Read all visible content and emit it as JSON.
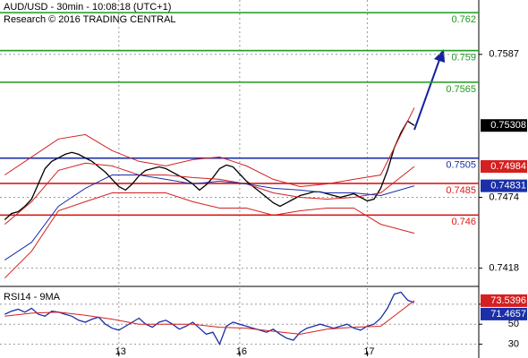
{
  "chart_data": [
    {
      "type": "line",
      "title": "AUD/USD - 30min - 10:08:18 (UTC+1)",
      "subtitle": "Research © 2016 TRADING CENTRAL",
      "x": [
        0,
        1,
        2,
        3,
        4,
        5,
        6,
        7,
        8,
        9,
        10,
        11,
        12,
        13,
        14,
        15,
        16,
        17,
        18,
        19,
        20,
        21,
        22,
        23,
        24,
        25,
        26,
        27,
        28,
        29,
        30,
        31,
        32,
        33,
        34,
        35,
        36,
        37,
        38,
        39,
        40,
        41,
        42,
        43,
        44,
        45,
        46,
        47,
        48,
        49,
        50,
        51,
        52,
        53,
        54,
        55,
        56,
        57,
        58,
        59,
        60,
        61
      ],
      "xlim": [
        -0.7,
        70.6
      ],
      "xticks": [
        {
          "value": 17,
          "label": "13"
        },
        {
          "value": 35,
          "label": "16"
        },
        {
          "value": 54,
          "label": "17"
        }
      ],
      "ylim": [
        0.7405,
        0.763
      ],
      "yticks": [
        0.7587,
        0.7474,
        0.7418
      ],
      "grid": true,
      "levels": [
        {
          "value": 0.762,
          "color": "#1f9a1f"
        },
        {
          "value": 0.759,
          "color": "#1f9a1f"
        },
        {
          "value": 0.7565,
          "color": "#1f9a1f"
        },
        {
          "value": 0.7505,
          "color": "#1a2fa8"
        },
        {
          "value": 0.7485,
          "color": "#d81b1b"
        },
        {
          "value": 0.746,
          "color": "#d81b1b"
        }
      ],
      "series": [
        {
          "color": "#000000",
          "last_label": true,
          "values": [
            0.74563,
            0.74612,
            0.74627,
            0.74669,
            0.74726,
            0.74846,
            0.74967,
            0.75024,
            0.75052,
            0.7508,
            0.75095,
            0.7508,
            0.75052,
            0.75024,
            0.74981,
            0.74939,
            0.74882,
            0.74825,
            0.74797,
            0.74846,
            0.7491,
            0.74953,
            0.74967,
            0.74981,
            0.74967,
            0.74939,
            0.7491,
            0.74882,
            0.74846,
            0.74797,
            0.74839,
            0.74896,
            0.74967,
            0.74995,
            0.74981,
            0.74924,
            0.74868,
            0.74825,
            0.74783,
            0.7474,
            0.74697,
            0.74669,
            0.74697,
            0.74726,
            0.74754,
            0.74768,
            0.74783,
            0.74783,
            0.74768,
            0.74754,
            0.7474,
            0.74754,
            0.74768,
            0.7474,
            0.74712,
            0.74726,
            0.74811,
            0.74953,
            0.7513,
            0.75251,
            0.75343,
            0.75308
          ]
        },
        {
          "color": "#d42020",
          "last_label": false,
          "x": [
            0,
            4,
            8,
            12,
            16,
            20,
            24,
            28,
            32,
            36,
            40,
            44,
            48,
            52,
            56,
            61
          ],
          "values": [
            0.74917,
            0.75059,
            0.75201,
            0.75236,
            0.75109,
            0.75024,
            0.74988,
            0.75038,
            0.75059,
            0.74988,
            0.74882,
            0.74825,
            0.74846,
            0.74882,
            0.74917,
            0.75449
          ]
        },
        {
          "color": "#d42020",
          "last_label": false,
          "x": [
            0,
            4,
            8,
            12,
            16,
            20,
            24,
            28,
            32,
            36,
            40,
            44,
            48,
            52,
            56,
            61
          ],
          "values": [
            0.74102,
            0.74314,
            0.74634,
            0.74705,
            0.74775,
            0.74775,
            0.74775,
            0.74705,
            0.74655,
            0.74655,
            0.74598,
            0.74634,
            0.74655,
            0.74655,
            0.74527,
            0.74456
          ]
        },
        {
          "color": "#d42020",
          "last_label": true,
          "x": [
            0,
            4,
            8,
            12,
            16,
            20,
            24,
            28,
            32,
            36,
            40,
            44,
            48,
            52,
            56,
            61
          ],
          "values": [
            0.74527,
            0.74705,
            0.74953,
            0.7501,
            0.74988,
            0.74917,
            0.74917,
            0.74896,
            0.74882,
            0.74846,
            0.74775,
            0.7474,
            0.74726,
            0.7474,
            0.74775,
            0.74984
          ]
        },
        {
          "color": "#1a2fa8",
          "last_label": true,
          "x": [
            0,
            4,
            8,
            12,
            16,
            20,
            24,
            28,
            32,
            36,
            40,
            44,
            48,
            52,
            56,
            61
          ],
          "values": [
            0.74244,
            0.74385,
            0.74669,
            0.74811,
            0.74917,
            0.74917,
            0.74882,
            0.74846,
            0.74868,
            0.74846,
            0.74811,
            0.74797,
            0.74775,
            0.74775,
            0.74754,
            0.74831
          ]
        }
      ]
    },
    {
      "type": "line",
      "title": "RSI14 - 9MA",
      "x": [
        0,
        1,
        2,
        3,
        4,
        5,
        6,
        7,
        8,
        9,
        10,
        11,
        12,
        13,
        14,
        15,
        16,
        17,
        18,
        19,
        20,
        21,
        22,
        23,
        24,
        25,
        26,
        27,
        28,
        29,
        30,
        31,
        32,
        33,
        34,
        35,
        36,
        37,
        38,
        39,
        40,
        41,
        42,
        43,
        44,
        45,
        46,
        47,
        48,
        49,
        50,
        51,
        52,
        53,
        54,
        55,
        56,
        57,
        58,
        59,
        60,
        61
      ],
      "ylim": [
        18,
        86
      ],
      "yticks": [
        70,
        50,
        30
      ],
      "grid": true,
      "series": [
        {
          "color": "#1a2fa8",
          "last_label": true,
          "values": [
            60,
            63,
            65,
            62,
            66,
            60,
            58,
            63,
            62,
            60,
            58,
            54,
            52,
            55,
            57,
            50,
            46,
            44,
            48,
            52,
            56,
            50,
            47,
            52,
            54,
            50,
            45,
            48,
            52,
            46,
            40,
            42,
            30,
            48,
            52,
            50,
            48,
            46,
            44,
            42,
            45,
            40,
            36,
            34,
            42,
            46,
            48,
            50,
            48,
            46,
            48,
            50,
            46,
            44,
            48,
            50,
            56,
            66,
            80,
            82,
            74,
            71.4657
          ]
        },
        {
          "color": "#d42020",
          "last_label": true,
          "x": [
            0,
            4,
            8,
            12,
            16,
            20,
            24,
            28,
            32,
            36,
            40,
            44,
            48,
            52,
            56,
            61
          ],
          "values": [
            58,
            61,
            62,
            59,
            55,
            50,
            50,
            50,
            47,
            46,
            43,
            40,
            45,
            47,
            48,
            73.5396
          ]
        }
      ]
    }
  ]
}
